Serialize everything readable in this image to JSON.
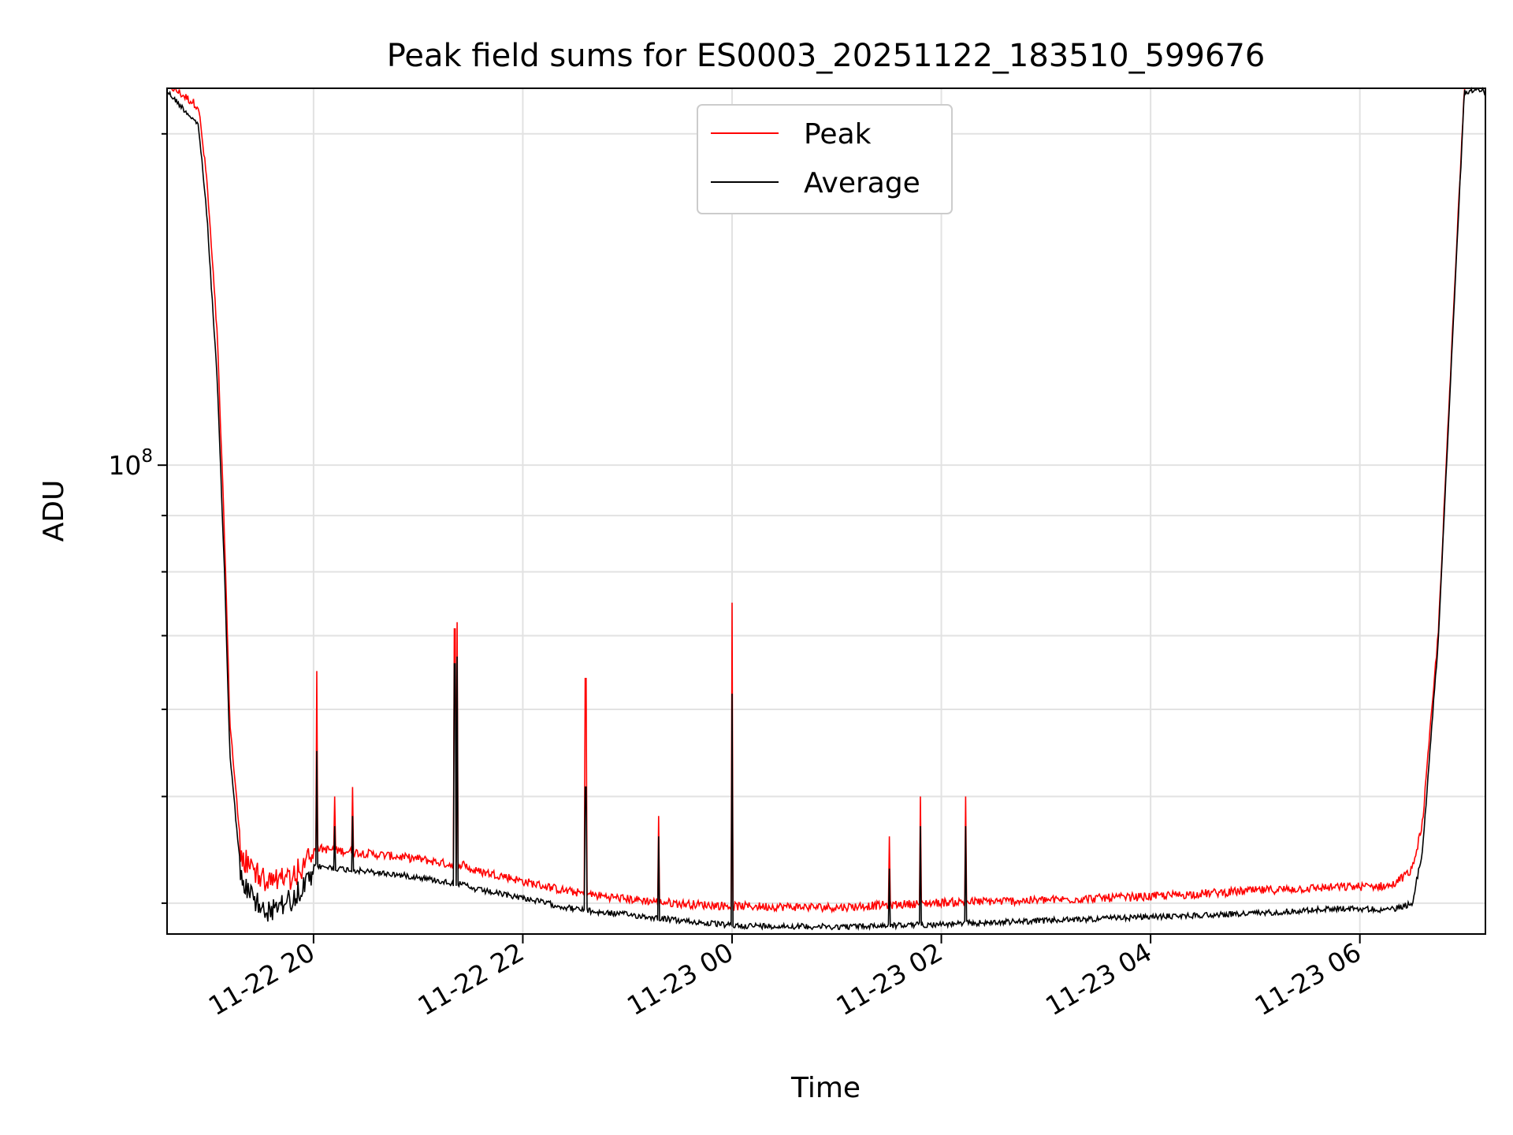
{
  "chart_data": {
    "type": "line",
    "title": "Peak field sums for ES0003_20251122_183510_599676",
    "xlabel": "Time",
    "ylabel": "ADU",
    "yscale": "log",
    "ytick_labels": [
      {
        "base": "10",
        "exp": "8",
        "value": 100000000
      }
    ],
    "ylim": [
      37500000,
      220000000
    ],
    "xlim_hours": [
      18.6,
      31.2
    ],
    "x_ticks": [
      {
        "hour": 20,
        "label": "11-22 20"
      },
      {
        "hour": 22,
        "label": "11-22 22"
      },
      {
        "hour": 24,
        "label": "11-23 00"
      },
      {
        "hour": 26,
        "label": "11-23 02"
      },
      {
        "hour": 28,
        "label": "11-23 04"
      },
      {
        "hour": 30,
        "label": "11-23 06"
      }
    ],
    "legend": {
      "location": "upper center",
      "entries": [
        "Peak",
        "Average"
      ]
    },
    "grid": true,
    "series": [
      {
        "name": "Peak",
        "color": "#ff0000",
        "x_hours": [
          18.6,
          18.9,
          18.98,
          19.08,
          19.15,
          19.2,
          19.3,
          19.45,
          19.6,
          19.75,
          19.9,
          20.0,
          20.5,
          21.0,
          21.3,
          21.45,
          21.5,
          21.8,
          22.0,
          22.4,
          22.7,
          23.0,
          23.5,
          24.0,
          25.0,
          26.0,
          27.0,
          28.0,
          29.0,
          29.8,
          30.3,
          30.5,
          30.6,
          30.75,
          30.9,
          31.0,
          31.2
        ],
        "values": [
          220000000,
          210000000,
          180000000,
          130000000,
          85000000,
          58000000,
          45000000,
          43500000,
          42500000,
          43000000,
          44000000,
          44500000,
          44000000,
          43500000,
          43000000,
          43000000,
          42500000,
          42000000,
          41500000,
          40700000,
          40300000,
          40000000,
          39600000,
          39400000,
          39300000,
          39700000,
          39900000,
          40200000,
          40700000,
          41000000,
          41100000,
          42500000,
          47000000,
          70000000,
          140000000,
          220000000,
          220000000
        ]
      },
      {
        "name": "Average",
        "color": "#000000",
        "x_hours": [
          18.6,
          18.9,
          18.98,
          19.08,
          19.15,
          19.2,
          19.3,
          19.45,
          19.6,
          19.75,
          19.9,
          20.0,
          20.5,
          21.0,
          21.3,
          21.45,
          21.5,
          21.8,
          22.0,
          22.4,
          22.7,
          23.0,
          23.5,
          24.0,
          25.0,
          26.0,
          27.0,
          28.0,
          29.0,
          29.8,
          30.3,
          30.5,
          30.6,
          30.75,
          30.9,
          31.0,
          31.2
        ],
        "values": [
          220000000,
          205000000,
          170000000,
          120000000,
          80000000,
          55000000,
          43500000,
          41500000,
          40500000,
          41500000,
          42500000,
          43500000,
          43000000,
          42500000,
          42000000,
          41800000,
          41500000,
          41000000,
          40700000,
          39900000,
          39500000,
          39300000,
          38800000,
          38400000,
          38300000,
          38500000,
          38800000,
          39100000,
          39400000,
          39800000,
          39700000,
          40200000,
          45000000,
          70000000,
          140000000,
          220000000,
          220000000
        ]
      }
    ],
    "spikes": [
      {
        "hour": 20.03,
        "peak": 65000000,
        "average": 55000000
      },
      {
        "hour": 20.2,
        "peak": 50000000,
        "average": 47000000
      },
      {
        "hour": 20.37,
        "peak": 51000000,
        "average": 48000000
      },
      {
        "hour": 21.35,
        "peak": 71000000,
        "average": 66000000
      },
      {
        "hour": 21.37,
        "peak": 72000000,
        "average": 67000000
      },
      {
        "hour": 22.6,
        "peak": 64000000,
        "average": 51000000
      },
      {
        "hour": 23.3,
        "peak": 48000000,
        "average": 46000000
      },
      {
        "hour": 24.0,
        "peak": 75000000,
        "average": 62000000
      },
      {
        "hour": 25.5,
        "peak": 46000000,
        "average": 43000000
      },
      {
        "hour": 25.8,
        "peak": 50000000,
        "average": 47000000
      },
      {
        "hour": 26.23,
        "peak": 50000000,
        "average": 47000000
      }
    ]
  }
}
